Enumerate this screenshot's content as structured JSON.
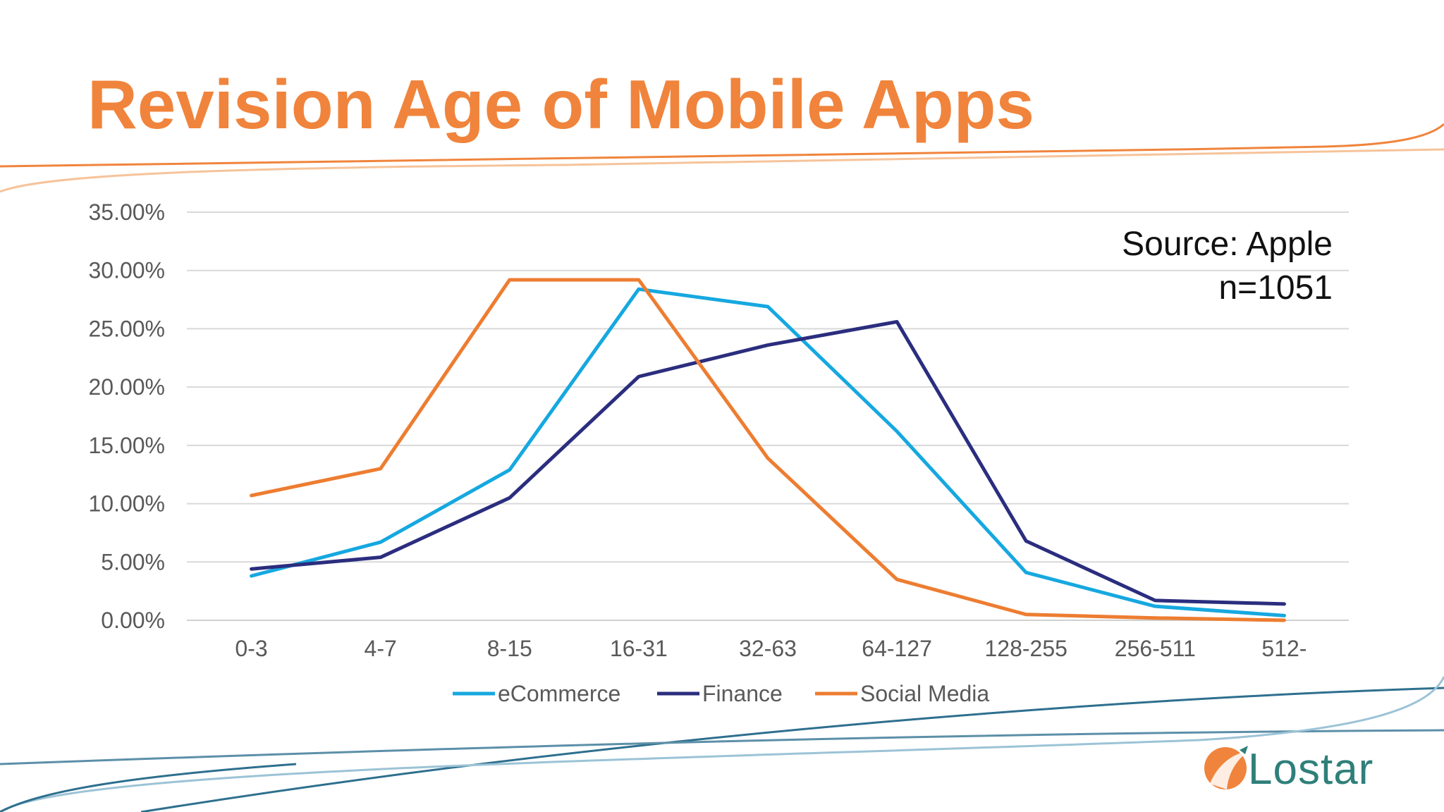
{
  "slide": {
    "title": "Revision Age of Mobile Apps",
    "colors": {
      "title": "#f0843c",
      "orange_line": "#f0843c",
      "blue_line": "#2e6f8e",
      "light_blue_line": "#9cc3d6"
    }
  },
  "annotation": {
    "source": "Source: Apple",
    "n": "n=1051"
  },
  "logo": {
    "text": "Lostar",
    "icon": "lostar-logo-icon"
  },
  "chart_data": {
    "type": "line",
    "title": "",
    "xlabel": "",
    "ylabel": "",
    "categories": [
      "0-3",
      "4-7",
      "8-15",
      "16-31",
      "32-63",
      "64-127",
      "128-255",
      "256-511",
      "512-"
    ],
    "ylim": [
      0,
      35
    ],
    "yticks": [
      "0.00%",
      "5.00%",
      "10.00%",
      "15.00%",
      "20.00%",
      "25.00%",
      "30.00%",
      "35.00%"
    ],
    "y_unit": "percent",
    "grid": true,
    "legend_position": "bottom",
    "series": [
      {
        "name": "eCommerce",
        "color": "#16a8e0",
        "values": [
          3.8,
          6.7,
          12.9,
          28.4,
          26.9,
          16.2,
          4.1,
          1.2,
          0.4
        ]
      },
      {
        "name": "Finance",
        "color": "#2b2d7e",
        "values": [
          4.4,
          5.4,
          10.5,
          20.9,
          23.6,
          25.6,
          6.8,
          1.7,
          1.4
        ]
      },
      {
        "name": "Social Media",
        "color": "#ed7d31",
        "values": [
          10.7,
          13.0,
          29.2,
          29.2,
          13.9,
          3.5,
          0.5,
          0.2,
          0.0
        ]
      }
    ]
  }
}
